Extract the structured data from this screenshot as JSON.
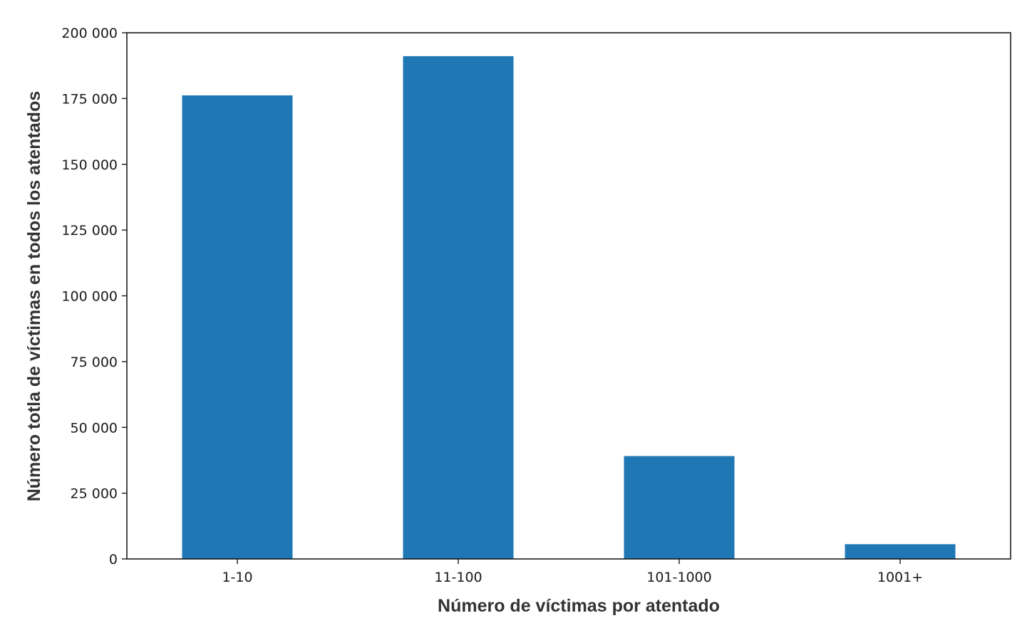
{
  "chart_data": {
    "type": "bar",
    "categories": [
      "1-10",
      "11-100",
      "101-1000",
      "1001+"
    ],
    "values": [
      176200,
      191100,
      39100,
      5600
    ],
    "title": "",
    "xlabel": "Número de víctimas por atentado",
    "ylabel": "Número totla de víctimas en todos los atentados",
    "ylim": [
      0,
      200000
    ],
    "yticks": [
      0,
      25000,
      50000,
      75000,
      100000,
      125000,
      150000,
      175000,
      200000
    ],
    "ytick_labels": [
      "0",
      "25 000",
      "50 000",
      "75 000",
      "100 000",
      "125 000",
      "150 000",
      "175 000",
      "200 000"
    ],
    "grid": false,
    "legend": "none",
    "bar_color": "#1f77b4"
  }
}
